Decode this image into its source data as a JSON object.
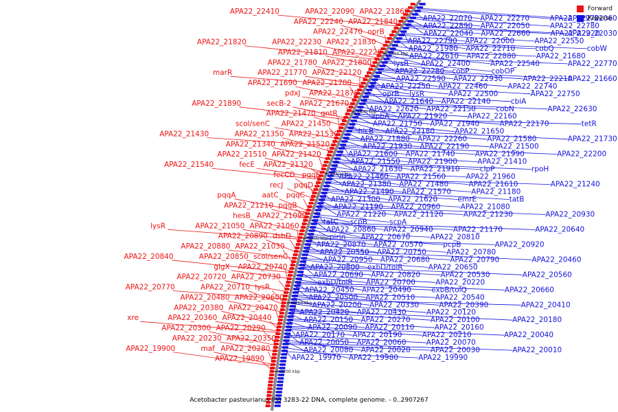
{
  "title": "Acetobacter pasteurianus IFO 3283-22 DNA, complete genome. - 0..2907267",
  "legend": [
    {
      "label": "Forward",
      "color": "#ee1111"
    },
    {
      "label": "Reverse",
      "color": "#1111dd"
    }
  ],
  "colors": {
    "forward": "#ee1111",
    "reverse": "#1111dd",
    "backbone": "#888888"
  },
  "ticks": [
    "2450 kbp",
    "2400 kbp",
    "2350 kbp",
    "2300 kbp",
    "2250 kbp",
    "2200 kbp"
  ],
  "forward_labels": [
    "APA22_21860",
    "APA22_22090",
    "APA22_22410",
    "APA22_21840",
    "APA22_22240",
    "oprB",
    "APA22_22470",
    "APA22_21830",
    "APA22_22230",
    "APA22_21820",
    "APA22_22220",
    "APA22_21810",
    "APA22_21800",
    "APA22_21780",
    "APA22_22120",
    "APA22_21770",
    "marR",
    "APA22_21700",
    "APA22_21690",
    "APA22_21870",
    "pdxJ",
    "APA22_21670",
    "secB-2",
    "APA22_21890",
    "gntR",
    "APA22_21470",
    "APA22_21450",
    "scol/senC",
    "APA22_21530",
    "APA22_21350",
    "APA22_21430",
    "APA22_21520",
    "APA22_21340",
    "APA22_21420",
    "APA22_21510",
    "APA22_21320",
    "fecE",
    "APA22_21540",
    "pqqE",
    "fecCD",
    "pqqD",
    "recJ",
    "pqqC",
    "aatC",
    "pqqA",
    "pqqB",
    "APA22_21210",
    "APA22_21090",
    "hesB",
    "APA22_21060",
    "APA22_21050",
    "lysR",
    "dsbD",
    "APA22_20890",
    "APA22_21030",
    "APA22_20880",
    "scol/senC",
    "APA22_20850",
    "APA22_20840",
    "APA22_20740",
    "glgX",
    "APA22_20730",
    "APA22_20720",
    "lysR",
    "APA22_20710",
    "APA22_20770",
    "APA22_20600",
    "APA22_20480",
    "APA22_20470",
    "APA22_20380",
    "APA22_20440",
    "APA22_20360",
    "xre",
    "APA22_20290",
    "APA22_20300",
    "APA22_20350",
    "APA22_20230",
    "APA22_20280",
    "maf",
    "APA22_19900",
    "APA22_19890"
  ],
  "reverse_labels": [
    "APA22_22070",
    "APA22_22270",
    "APA22_22970",
    "APA22_22060",
    "APA22_22890",
    "APA22_22050",
    "APA22_22780",
    "APA22_22040",
    "APA22_22660",
    "APA22_22920",
    "APA22_22030",
    "APA22_22790",
    "APA22_22000",
    "APA22_22550",
    "APA22_21980",
    "APA22_22710",
    "cobQ",
    "cobW",
    "APA22_22610",
    "APA22_22880",
    "APA22_21680",
    "lysR",
    "APA22_22400",
    "APA22_22540",
    "APA22_22770",
    "APA22_22280",
    "cobP",
    "cobOP",
    "APA22_22590",
    "APA22_22930",
    "APA22_22210",
    "APA22_21660",
    "APA22_22250",
    "APA22_22460",
    "APA22_22740",
    "oprB",
    "lysR",
    "APA22_22500",
    "APA22_22750",
    "APA22_21640",
    "APA22_22140",
    "cbiA",
    "APA22_22620",
    "APA22_22150",
    "cobN",
    "APA22_22630",
    "apbA",
    "APA22_21920",
    "APA22_22160",
    "APA22_21750",
    "APA22_21940",
    "APA22_22170",
    "tetR",
    "hicB",
    "APA22_22180",
    "APA22_21650",
    "APA22_21880",
    "APA22_22260",
    "APA22_21580",
    "APA22_21730",
    "APA22_21930",
    "APA22_22190",
    "APA22_21500",
    "APA22_21600",
    "APA22_21740",
    "APA22_21990",
    "APA22_22200",
    "APA22_21550",
    "APA22_21900",
    "APA22_21410",
    "APA22_21630",
    "APA22_21910",
    "clpP",
    "rpoH",
    "APA22_21460",
    "APA22_21560",
    "APA22_21960",
    "APA22_21380",
    "APA22_21480",
    "APA22_21610",
    "APA22_21240",
    "APA22_21490",
    "APA22_21570",
    "APA22_21180",
    "APA22_21300",
    "APA22_21620",
    "emrE",
    "tatB",
    "APA22_21190",
    "APA22_20960",
    "APA22_21080",
    "APA22_21220",
    "APA22_21120",
    "APA22_21230",
    "APA22_20930",
    "tatC",
    "scpB",
    "scpA",
    "APA22_20860",
    "APA22_20940",
    "APA22_21170",
    "APA22_20640",
    "pirin",
    "APA22_20670",
    "APA22_20810",
    "APA22_20870",
    "APA22_20570",
    "pcpB",
    "APA22_20920",
    "APA22_20550",
    "APA22_20750",
    "APA22_20780",
    "APA22_20950",
    "APA22_20680",
    "APA22_20790",
    "APA22_20460",
    "APA22_20800",
    "exbD/tolR",
    "APA22_20650",
    "APA22_20690",
    "APA22_20820",
    "APA22_20530",
    "APA22_20560",
    "exbD/tolR",
    "APA22_20700",
    "APA22_20220",
    "APA22_20450",
    "APA22_20490",
    "exbB/tolQ",
    "APA22_20660",
    "APA22_20500",
    "APA22_20510",
    "APA22_20540",
    "APA22_20200",
    "APA22_20330",
    "APA22_20390",
    "APA22_20410",
    "APA22_20420",
    "APA22_20430",
    "APA22_20120",
    "APA22_20150",
    "APA22_20270",
    "APA22_20100",
    "APA22_20180",
    "APA22_20090",
    "APA22_20110",
    "APA22_20160",
    "APA22_20170",
    "APA22_20190",
    "APA22_20210",
    "APA22_20040",
    "APA22_20050",
    "APA22_20060",
    "APA22_20070",
    "APA22_20080",
    "APA22_20020",
    "APA22_20030",
    "APA22_20010",
    "APA22_19970",
    "APA22_19980",
    "APA22_19990"
  ]
}
